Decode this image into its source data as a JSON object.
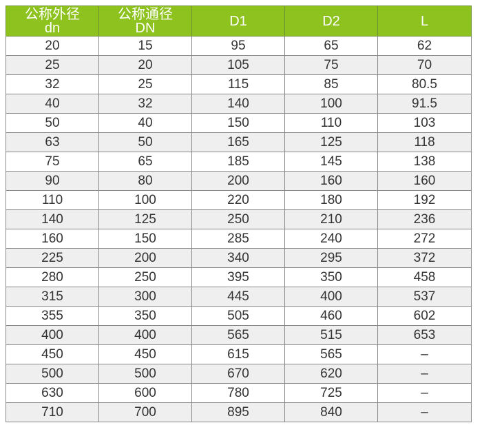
{
  "header_color": "#8dc21f",
  "headers": [
    {
      "line1": "公称外径",
      "line2": "dn"
    },
    {
      "line1": "公称通径",
      "line2": "DN"
    },
    {
      "line1": "D1",
      "line2": ""
    },
    {
      "line1": "D2",
      "line2": ""
    },
    {
      "line1": "L",
      "line2": ""
    }
  ],
  "rows": [
    [
      "20",
      "15",
      "95",
      "65",
      "62"
    ],
    [
      "25",
      "20",
      "105",
      "75",
      "70"
    ],
    [
      "32",
      "25",
      "115",
      "85",
      "80.5"
    ],
    [
      "40",
      "32",
      "140",
      "100",
      "91.5"
    ],
    [
      "50",
      "40",
      "150",
      "110",
      "103"
    ],
    [
      "63",
      "50",
      "165",
      "125",
      "118"
    ],
    [
      "75",
      "65",
      "185",
      "145",
      "138"
    ],
    [
      "90",
      "80",
      "200",
      "160",
      "160"
    ],
    [
      "110",
      "100",
      "220",
      "180",
      "192"
    ],
    [
      "140",
      "125",
      "250",
      "210",
      "236"
    ],
    [
      "160",
      "150",
      "285",
      "240",
      "272"
    ],
    [
      "225",
      "200",
      "340",
      "295",
      "372"
    ],
    [
      "280",
      "250",
      "395",
      "350",
      "458"
    ],
    [
      "315",
      "300",
      "445",
      "400",
      "537"
    ],
    [
      "355",
      "350",
      "505",
      "460",
      "602"
    ],
    [
      "400",
      "400",
      "565",
      "515",
      "653"
    ],
    [
      "450",
      "450",
      "615",
      "565",
      "–"
    ],
    [
      "500",
      "500",
      "670",
      "620",
      "–"
    ],
    [
      "630",
      "600",
      "780",
      "725",
      "–"
    ],
    [
      "710",
      "700",
      "895",
      "840",
      "–"
    ]
  ]
}
